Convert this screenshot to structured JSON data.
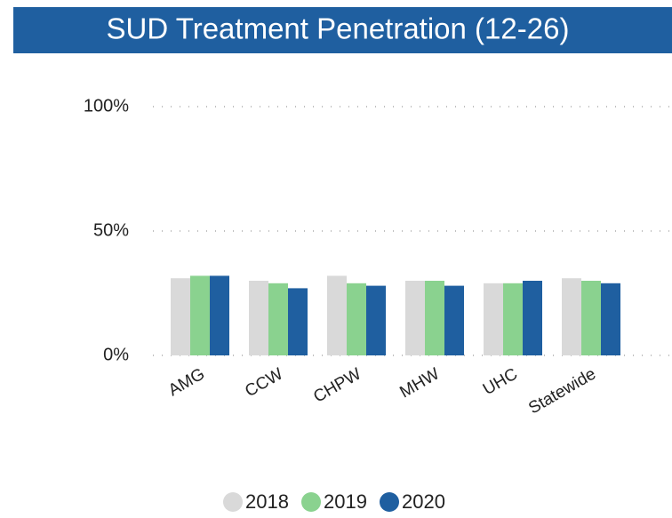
{
  "chart_data": {
    "type": "bar",
    "title": "SUD Treatment Penetration (12-26)",
    "categories": [
      "AMG",
      "CCW",
      "CHPW",
      "MHW",
      "UHC",
      "Statewide"
    ],
    "series": [
      {
        "name": "2018",
        "color": "#d9d9d9",
        "values": [
          31,
          30,
          32,
          30,
          29,
          31
        ]
      },
      {
        "name": "2019",
        "color": "#8ad28f",
        "values": [
          32,
          29,
          29,
          30,
          29,
          30
        ]
      },
      {
        "name": "2020",
        "color": "#1f5fa0",
        "values": [
          32,
          27,
          28,
          28,
          30,
          29
        ]
      }
    ],
    "ylim": [
      0,
      100
    ],
    "yticks": [
      {
        "value": 0,
        "label": "0%"
      },
      {
        "value": 50,
        "label": "50%"
      },
      {
        "value": 100,
        "label": "100%"
      }
    ],
    "grid": true,
    "legend": "bottom"
  }
}
